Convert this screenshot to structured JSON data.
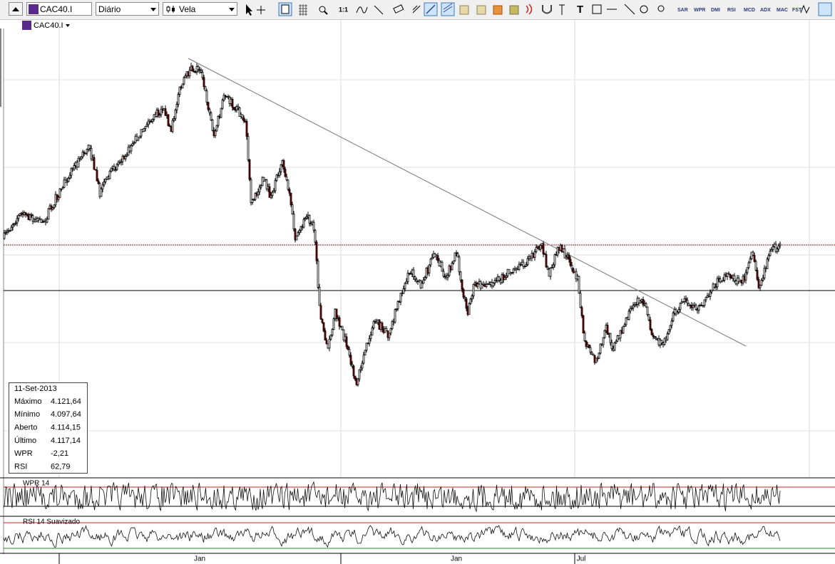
{
  "toolbar": {
    "symbol": "CAC40.I",
    "period": "Diário",
    "chart_style": "Vela",
    "buttons": [
      "1:1",
      "SAR",
      "WPR",
      "DMI",
      "RSI",
      "MCD",
      "ADX",
      "MAC",
      "FST"
    ]
  },
  "chart": {
    "symbol_label": "CAC40.I",
    "x_labels": [
      "Jan",
      "Jan",
      "Jul"
    ]
  },
  "info_box": {
    "date": "11-Set-2013",
    "rows": [
      [
        "Máximo",
        "4.121,64"
      ],
      [
        "Mínimo",
        "4.097,64"
      ],
      [
        "Aberto",
        "4.114,15"
      ],
      [
        "Último",
        "4.117,14"
      ],
      [
        "WPR",
        "-2,21"
      ],
      [
        "RSI",
        "62,79"
      ]
    ]
  },
  "indicators": [
    {
      "label": "WPR 14"
    },
    {
      "label": "RSI 14 Suavizado"
    }
  ]
}
